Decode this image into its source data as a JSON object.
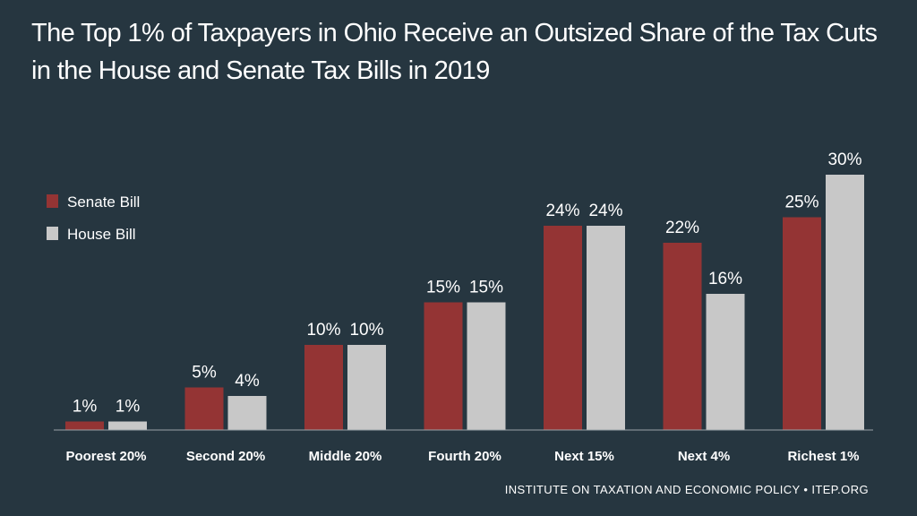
{
  "chart_data": {
    "type": "bar",
    "title": "The Top 1% of Taxpayers in Ohio Receive an Outsized Share of the Tax Cuts in the House and Senate Tax Bills in 2019",
    "categories": [
      "Poorest 20%",
      "Second 20%",
      "Middle 20%",
      "Fourth 20%",
      "Next 15%",
      "Next 4%",
      "Richest 1%"
    ],
    "series": [
      {
        "name": "Senate Bill",
        "color": "#943434",
        "values": [
          1,
          5,
          10,
          15,
          24,
          22,
          25
        ],
        "labels": [
          "1%",
          "5%",
          "10%",
          "15%",
          "24%",
          "22%",
          "25%"
        ]
      },
      {
        "name": "House Bill",
        "color": "#c8c8c8",
        "values": [
          1,
          4,
          10,
          15,
          24,
          16,
          30
        ],
        "labels": [
          "1%",
          "4%",
          "10%",
          "15%",
          "24%",
          "16%",
          "30%"
        ]
      }
    ],
    "xlabel": "",
    "ylabel": "",
    "ylim": [
      0,
      30
    ],
    "grid": false,
    "legend": "left"
  },
  "footer": "INSTITUTE ON TAXATION AND ECONOMIC POLICY • ITEP.ORG"
}
